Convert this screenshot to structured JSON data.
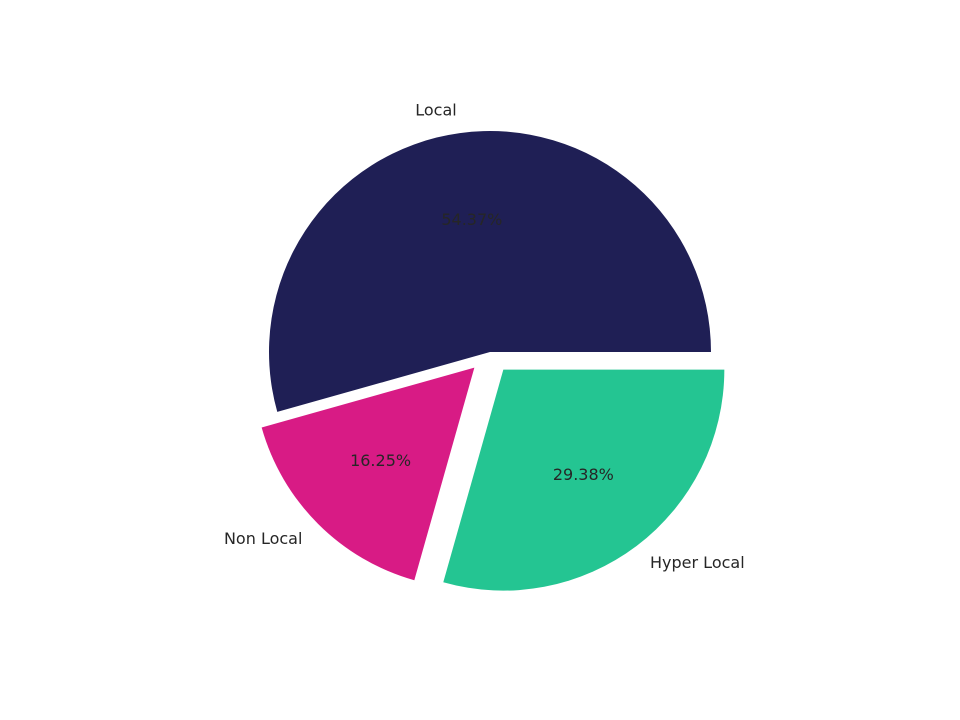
{
  "chart_data": {
    "type": "pie",
    "categories": [
      "Local",
      "Non Local",
      "Hyper Local"
    ],
    "values": [
      54.37,
      16.25,
      29.38
    ],
    "value_labels": [
      "54.37%",
      "16.25%",
      "29.38%"
    ],
    "colors": [
      "#1f1f55",
      "#d81b85",
      "#24c592"
    ],
    "explode": [
      0,
      0.1,
      0.1
    ],
    "start_angle": 0
  }
}
